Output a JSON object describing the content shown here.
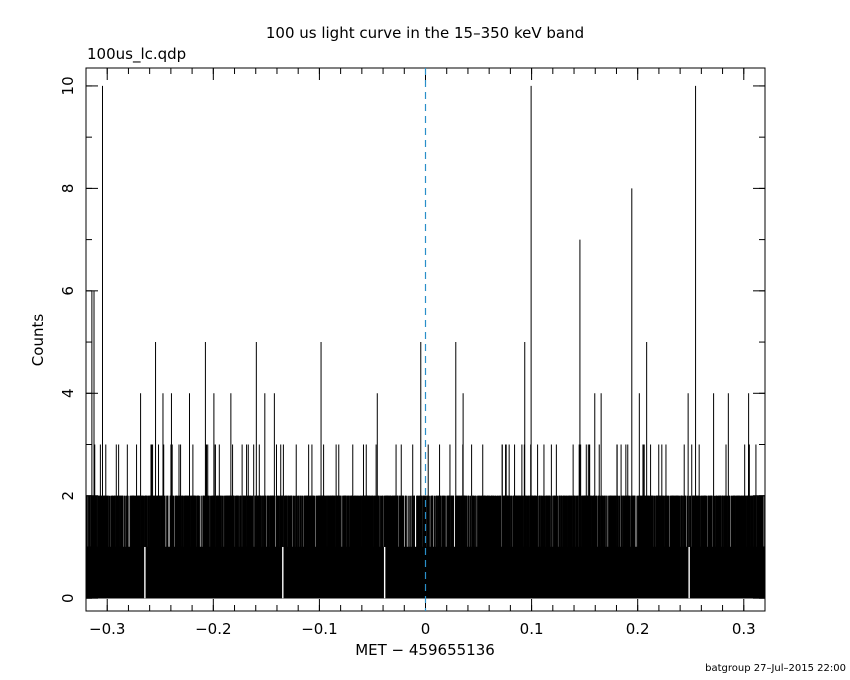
{
  "title": "100 us light curve in the 15–350 keV band",
  "subtitle": "100us_lc.qdp",
  "xlabel": "MET − 459655136",
  "ylabel": "Counts",
  "footer": "batgroup 27–Jul–2015 22:00",
  "chart_data": {
    "type": "histogram-step",
    "title": "100 us light curve in the 15–350 keV band",
    "subtitle": "100us_lc.qdp",
    "xlabel": "MET − 459655136",
    "ylabel": "Counts",
    "xlim": [
      -0.32,
      0.32
    ],
    "ylim": [
      -0.25,
      10.35
    ],
    "bin_width": 0.0001,
    "x_ticks": [
      {
        "v": -0.3,
        "label": "−0.3"
      },
      {
        "v": -0.2,
        "label": "−0.2"
      },
      {
        "v": -0.1,
        "label": "−0.1"
      },
      {
        "v": 0,
        "label": "0"
      },
      {
        "v": 0.1,
        "label": "0.1"
      },
      {
        "v": 0.2,
        "label": "0.2"
      },
      {
        "v": 0.3,
        "label": "0.3"
      }
    ],
    "y_ticks": [
      {
        "v": 0,
        "label": "0"
      },
      {
        "v": 2,
        "label": "2"
      },
      {
        "v": 4,
        "label": "4"
      },
      {
        "v": 6,
        "label": "6"
      },
      {
        "v": 8,
        "label": "8"
      },
      {
        "v": 10,
        "label": "10"
      }
    ],
    "trigger_line_x": 0,
    "baseline_counts": 1,
    "peaks": [
      {
        "x": -0.3145,
        "y": 6
      },
      {
        "x": -0.3125,
        "y": 6
      },
      {
        "x": -0.3045,
        "y": 10
      },
      {
        "x": -0.2685,
        "y": 4
      },
      {
        "x": -0.2545,
        "y": 5
      },
      {
        "x": -0.2475,
        "y": 4
      },
      {
        "x": -0.2395,
        "y": 4
      },
      {
        "x": -0.2225,
        "y": 4
      },
      {
        "x": -0.2075,
        "y": 5
      },
      {
        "x": -0.1995,
        "y": 4
      },
      {
        "x": -0.1835,
        "y": 4
      },
      {
        "x": -0.1595,
        "y": 5
      },
      {
        "x": -0.1515,
        "y": 4
      },
      {
        "x": -0.1425,
        "y": 4
      },
      {
        "x": -0.0985,
        "y": 5
      },
      {
        "x": -0.0455,
        "y": 4
      },
      {
        "x": -0.0045,
        "y": 5
      },
      {
        "x": 0.0285,
        "y": 5
      },
      {
        "x": 0.0355,
        "y": 4
      },
      {
        "x": 0.0935,
        "y": 5
      },
      {
        "x": 0.0995,
        "y": 10
      },
      {
        "x": 0.1455,
        "y": 7
      },
      {
        "x": 0.1595,
        "y": 4
      },
      {
        "x": 0.1655,
        "y": 4
      },
      {
        "x": 0.1945,
        "y": 8
      },
      {
        "x": 0.2015,
        "y": 4
      },
      {
        "x": 0.2085,
        "y": 5
      },
      {
        "x": 0.2475,
        "y": 4
      },
      {
        "x": 0.2545,
        "y": 10
      },
      {
        "x": 0.2715,
        "y": 4
      },
      {
        "x": 0.2855,
        "y": 4
      },
      {
        "x": 0.3045,
        "y": 4
      }
    ],
    "zero_bins": [
      -0.2645,
      -0.1345,
      -0.0385,
      0.2485
    ],
    "grid": false,
    "legend": "none"
  }
}
